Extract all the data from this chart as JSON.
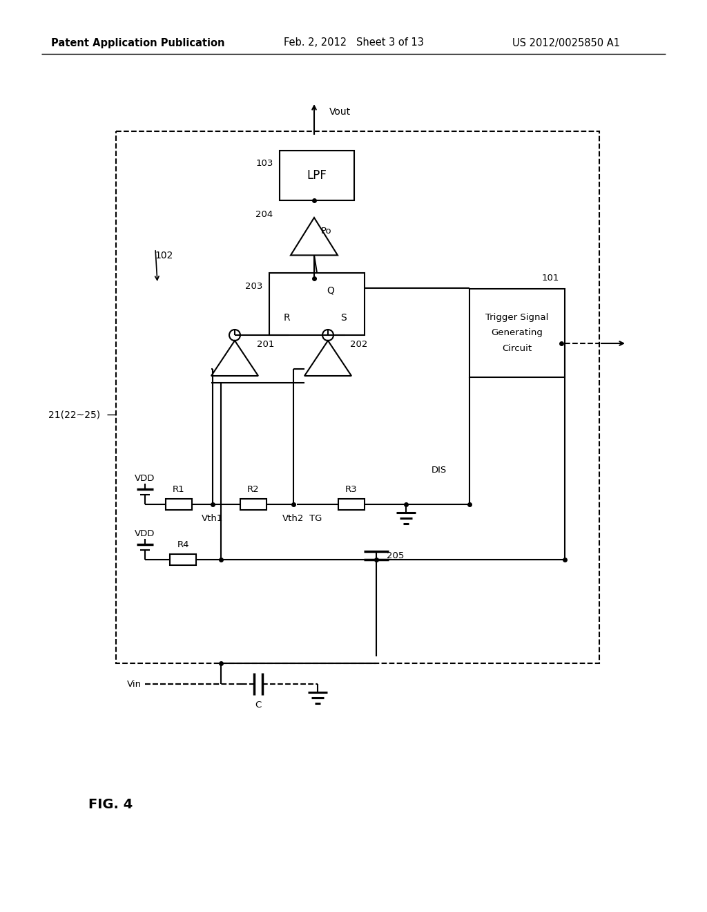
{
  "bg_color": "#ffffff",
  "header_left": "Patent Application Publication",
  "header_center": "Feb. 2, 2012   Sheet 3 of 13",
  "header_right": "US 2012/0025850 A1",
  "fig_label": "FIG. 4",
  "lw": 1.5,
  "fs_header": 10.5,
  "fs_label": 10,
  "fs_small": 9.5
}
